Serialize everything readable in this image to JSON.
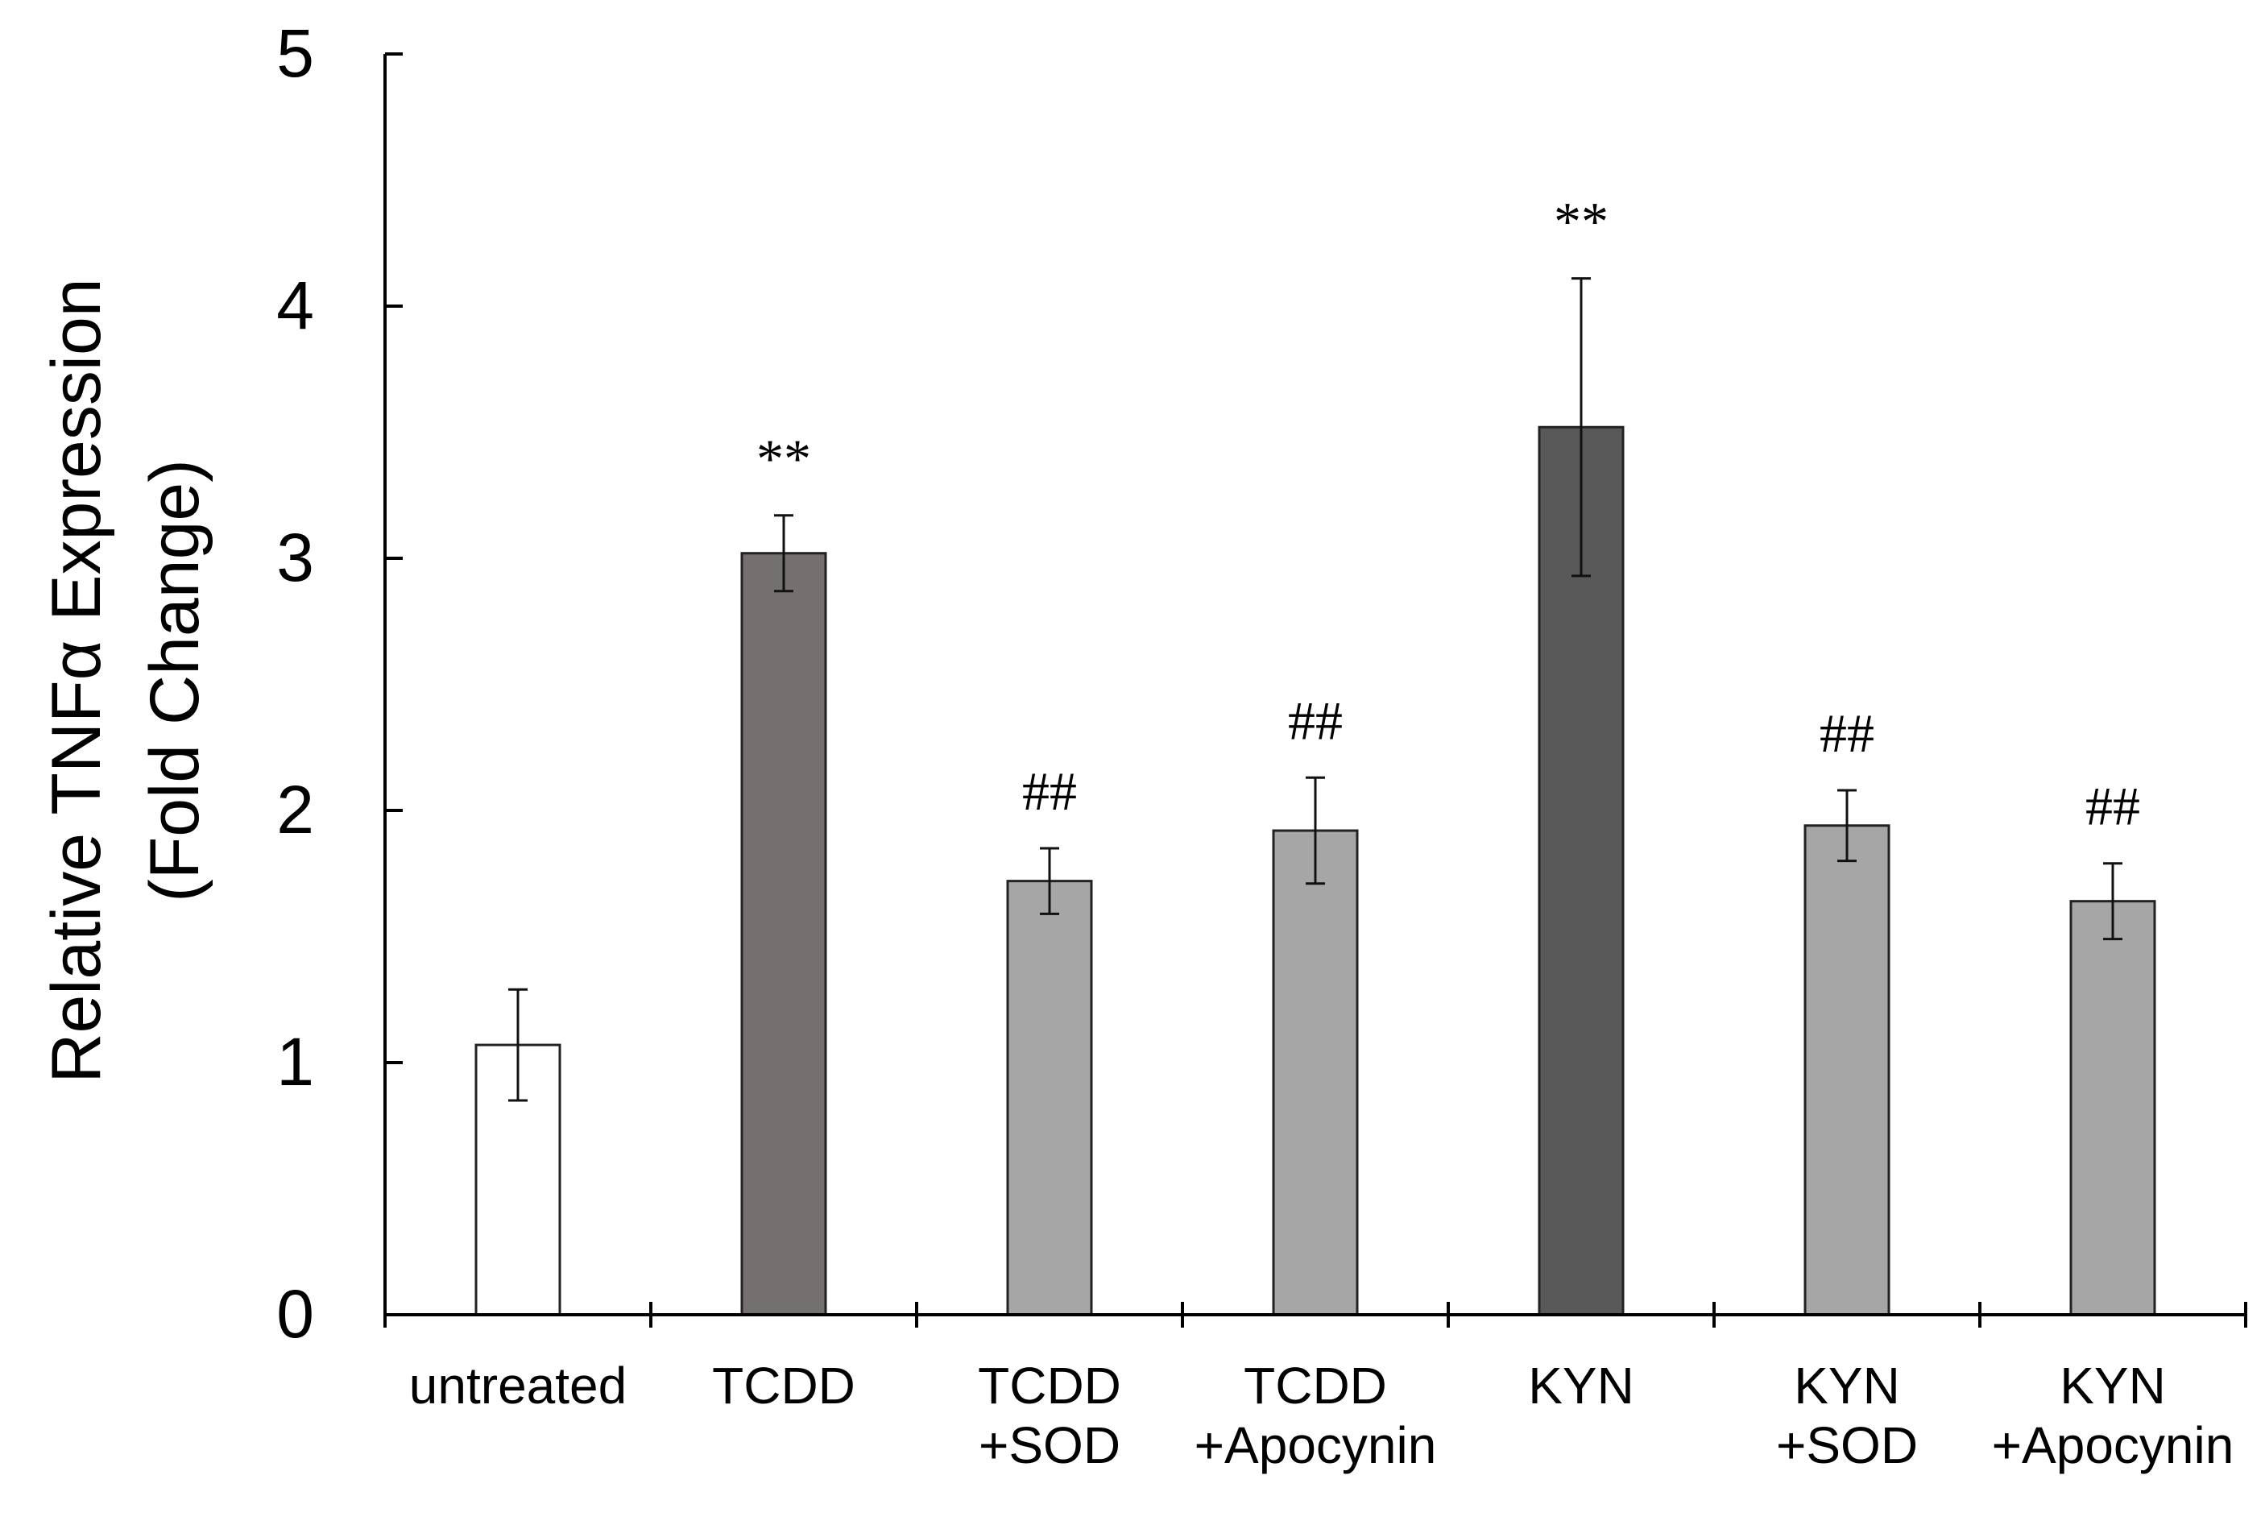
{
  "chart_data": {
    "type": "bar",
    "title": "",
    "xlabel": "",
    "ylabel_line1": "Relative TNFα Expression",
    "ylabel_line2": "(Fold Change)",
    "ylim": [
      0,
      5
    ],
    "yticks": [
      "0",
      "1",
      "2",
      "3",
      "4",
      "5"
    ],
    "grid": false,
    "categories": [
      {
        "lines": [
          "untreated"
        ]
      },
      {
        "lines": [
          "TCDD"
        ]
      },
      {
        "lines": [
          "TCDD",
          "+SOD"
        ]
      },
      {
        "lines": [
          "TCDD",
          "+Apocynin"
        ]
      },
      {
        "lines": [
          "KYN"
        ]
      },
      {
        "lines": [
          "KYN",
          "+SOD"
        ]
      },
      {
        "lines": [
          "KYN",
          "+Apocynin"
        ]
      }
    ],
    "values": [
      1.07,
      3.02,
      1.72,
      1.92,
      3.52,
      1.94,
      1.64
    ],
    "errors": [
      0.22,
      0.15,
      0.13,
      0.21,
      0.59,
      0.14,
      0.15
    ],
    "significance": [
      "",
      "**",
      "##",
      "##",
      "**",
      "##",
      "##"
    ],
    "bar_colors": [
      "#ffffff",
      "#757070",
      "#a6a6a6",
      "#a6a6a6",
      "#595959",
      "#a6a6a6",
      "#a6a6a6"
    ]
  }
}
